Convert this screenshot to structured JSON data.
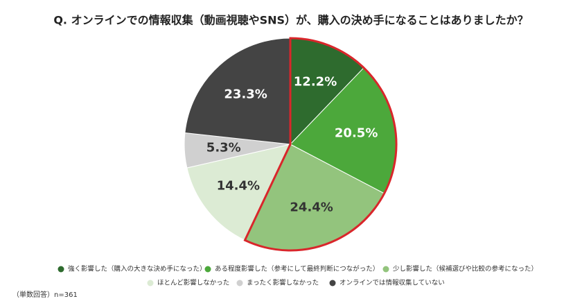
{
  "chart_data": {
    "type": "pie",
    "title": "Q. オンラインでの情報収集（動画視聴やSNS）が、購入の決め手になることはありましたか？",
    "note": "（単数回答）n=361",
    "categories": [
      "強く影響した（購入の大きな決め手になった）",
      "ある程度影響した（参考にして最終判断につながった）",
      "少し影響した（候補選びや比較の参考になった）",
      "ほとんど影響しなかった",
      "まったく影響しなかった",
      "オンラインでは情報収集していない"
    ],
    "values": [
      12.2,
      20.5,
      24.4,
      14.4,
      5.3,
      23.3
    ],
    "value_labels": [
      "12.2%",
      "20.5%",
      "24.4%",
      "14.4%",
      "5.3%",
      "23.3%"
    ],
    "colors": [
      "#2e6b2e",
      "#4ca83b",
      "#93c47d",
      "#dcebd4",
      "#d0d0d0",
      "#444444"
    ],
    "highlight": {
      "slices": [
        0,
        1,
        2
      ],
      "color": "#d9262b"
    },
    "legend": "bottom"
  }
}
